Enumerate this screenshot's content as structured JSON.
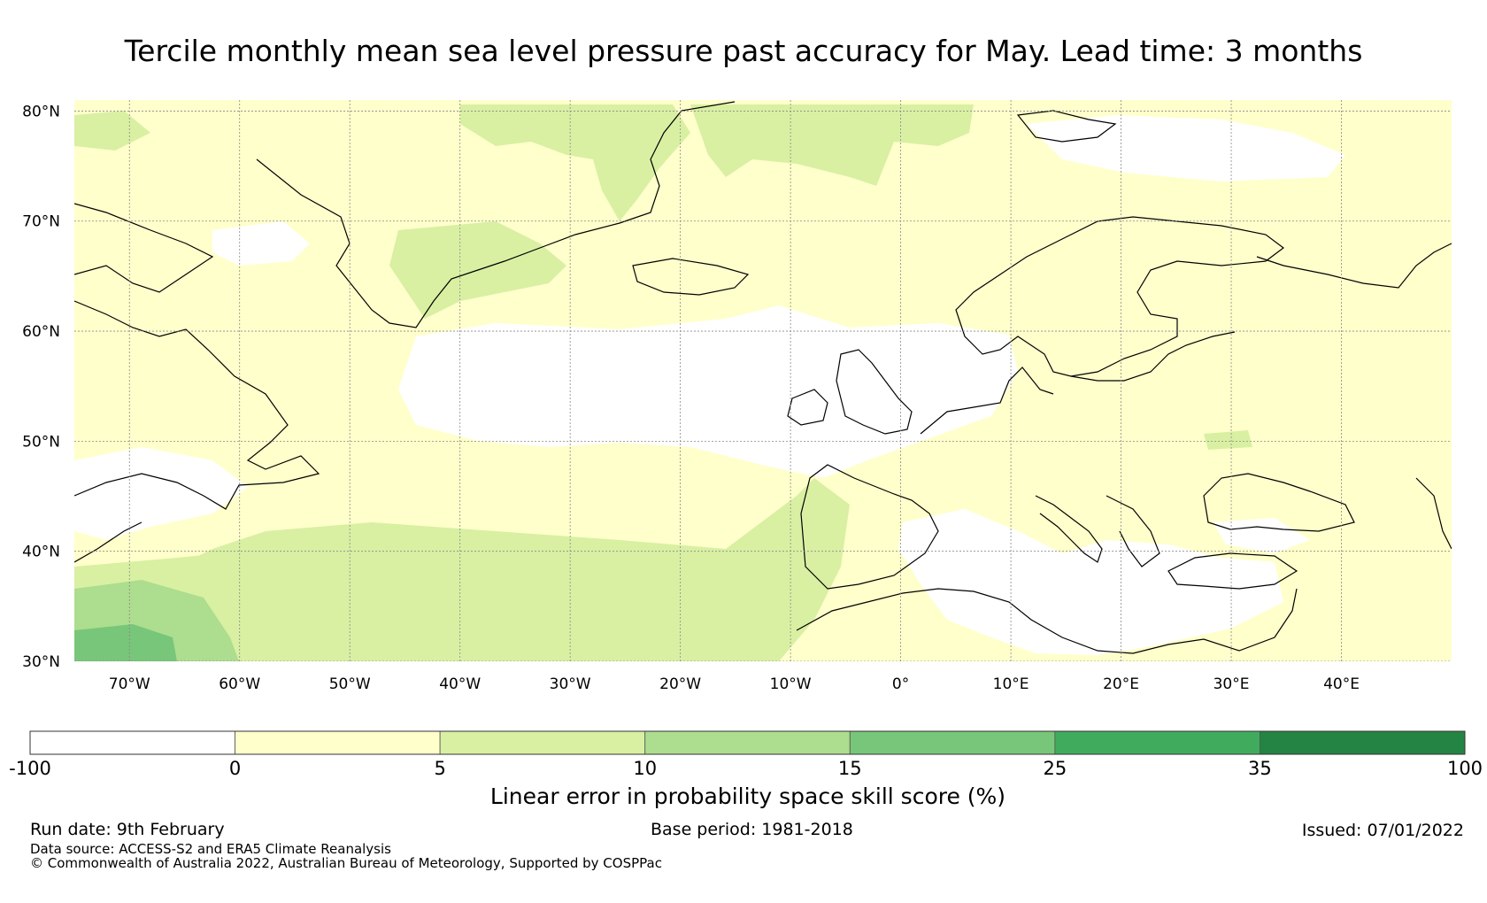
{
  "title": "Tercile monthly mean sea level pressure past accuracy for May. Lead time: 3 months",
  "map": {
    "lat_labels": [
      "80°N",
      "70°N",
      "60°N",
      "50°N",
      "40°N",
      "30°N"
    ],
    "lat_values": [
      80,
      70,
      60,
      50,
      40,
      30
    ],
    "lon_labels": [
      "70°W",
      "60°W",
      "50°W",
      "40°W",
      "30°W",
      "20°W",
      "10°W",
      "0°",
      "10°E",
      "20°E",
      "30°E",
      "40°E"
    ],
    "lon_values": [
      -70,
      -60,
      -50,
      -40,
      -30,
      -20,
      -10,
      0,
      10,
      20,
      30,
      40
    ],
    "extent": {
      "lon_min": -75,
      "lon_max": 50,
      "lat_min": 30,
      "lat_max": 81
    }
  },
  "colorbar": {
    "ticks": [
      "-100",
      "0",
      "5",
      "10",
      "15",
      "25",
      "35",
      "100"
    ],
    "colors": [
      "#ffffff",
      "#ffffcc",
      "#d9f0a3",
      "#addd8e",
      "#78c679",
      "#41ab5d",
      "#238443"
    ],
    "label": "Linear error in probability space skill score (%)"
  },
  "footer": {
    "run_date": "Run date: 9th February",
    "base_period": "Base period: 1981-2018",
    "issued": "Issued: 07/01/2022",
    "data_source": "Data source: ACCESS-S2 and ERA5 Climate Reanalysis",
    "copyright": "© Commonwealth of Australia 2022, Australian Bureau of Meteorology, Supported by COSPPac"
  }
}
